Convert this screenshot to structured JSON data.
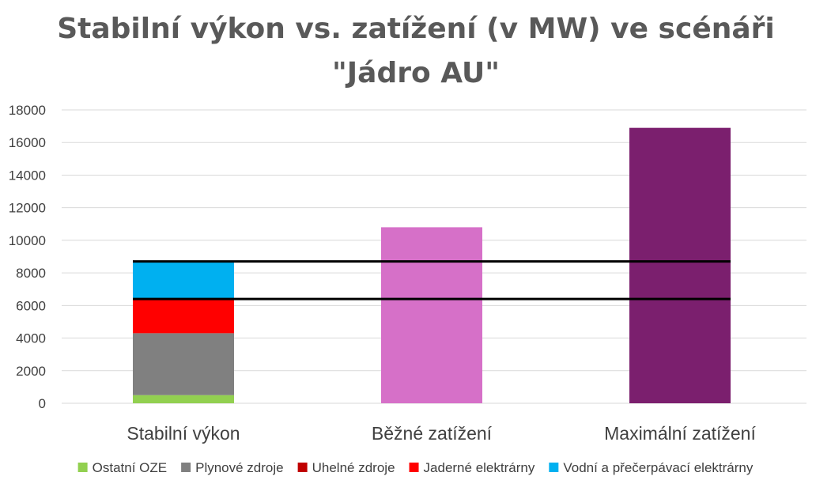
{
  "chart_data": {
    "type": "bar",
    "title_lines": [
      "Stabilní výkon vs. zatížení (v MW) ve scénáři",
      "\"Jádro AU\""
    ],
    "xlabel": "",
    "ylabel": "",
    "ylim": [
      0,
      18000
    ],
    "yticks": [
      0,
      2000,
      4000,
      6000,
      8000,
      10000,
      12000,
      14000,
      16000,
      18000
    ],
    "categories": [
      "Stabilní výkon",
      "Běžné zatížení",
      "Maximální zatížení"
    ],
    "stacked_series": [
      {
        "name": "Ostatní OZE",
        "color": "#92d050",
        "values": [
          500,
          null,
          null
        ]
      },
      {
        "name": "Plynové zdroje",
        "color": "#808080",
        "values": [
          3800,
          null,
          null
        ]
      },
      {
        "name": "Uhelné zdroje",
        "color": "#c00000",
        "values": [
          0,
          null,
          null
        ]
      },
      {
        "name": "Jaderné elektrárny",
        "color": "#ff0000",
        "values": [
          2100,
          null,
          null
        ]
      },
      {
        "name": "Vodní a přečerpávací elektrárny",
        "color": "#00b0f0",
        "values": [
          2300,
          null,
          null
        ]
      }
    ],
    "load_bars": [
      {
        "category": "Běžné zatížení",
        "value": 10800,
        "color": "#d670c8"
      },
      {
        "category": "Maximální zatížení",
        "value": 16900,
        "color": "#7b1f6e"
      }
    ],
    "reference_lines": [
      6400,
      8700
    ],
    "grid": true,
    "legend_position": "bottom"
  }
}
